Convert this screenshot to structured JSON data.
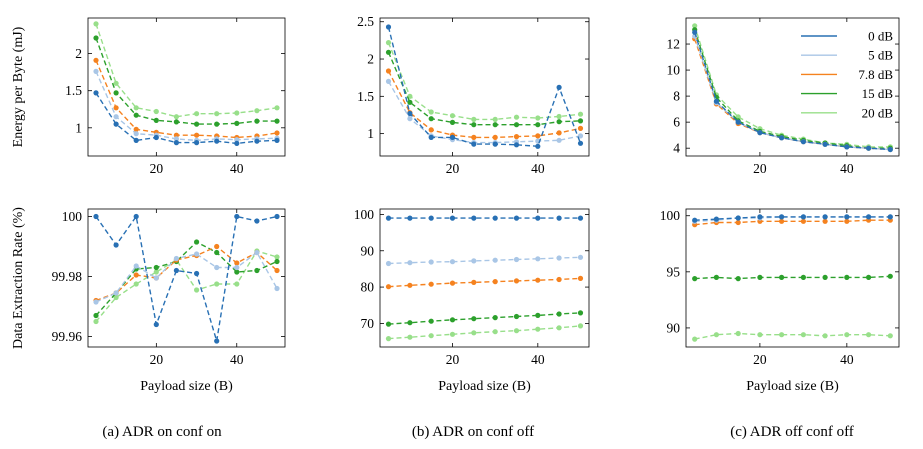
{
  "chart_data": [
    {
      "type": "line",
      "caption": "(a) ADR on conf on",
      "ylabel": "Energy per Byte (mJ)",
      "xlabel": "",
      "xlim": [
        3,
        52
      ],
      "ylim": [
        0.62,
        2.48
      ],
      "xticks": [
        20,
        40
      ],
      "yticks": [
        1,
        1.5,
        2
      ],
      "yticklabels": [
        "1",
        "1.5",
        "2"
      ],
      "x": [
        5,
        10,
        15,
        20,
        25,
        30,
        35,
        40,
        45,
        50
      ],
      "series": [
        {
          "name": "0 dB",
          "values": [
            1.47,
            1.05,
            0.83,
            0.87,
            0.8,
            0.8,
            0.82,
            0.79,
            0.82,
            0.83
          ]
        },
        {
          "name": "5 dB",
          "values": [
            1.76,
            1.15,
            0.92,
            0.9,
            0.85,
            0.83,
            0.85,
            0.84,
            0.85,
            0.86
          ]
        },
        {
          "name": "7.8 dB",
          "values": [
            1.91,
            1.27,
            0.98,
            0.94,
            0.9,
            0.9,
            0.89,
            0.87,
            0.89,
            0.93
          ]
        },
        {
          "name": "15 dB",
          "values": [
            2.21,
            1.47,
            1.17,
            1.1,
            1.08,
            1.05,
            1.05,
            1.06,
            1.09,
            1.09
          ]
        },
        {
          "name": "20 dB",
          "values": [
            2.4,
            1.6,
            1.27,
            1.22,
            1.15,
            1.19,
            1.19,
            1.2,
            1.23,
            1.27
          ]
        }
      ]
    },
    {
      "type": "line",
      "caption": "(b) ADR on conf off",
      "ylabel": "",
      "xlabel": "",
      "xlim": [
        3,
        52
      ],
      "ylim": [
        0.7,
        2.55
      ],
      "xticks": [
        20,
        40
      ],
      "yticks": [
        1,
        1.5,
        2,
        2.5
      ],
      "yticklabels": [
        "1",
        "1.5",
        "2",
        "2.5"
      ],
      "x": [
        5,
        10,
        15,
        20,
        25,
        30,
        35,
        40,
        45,
        50
      ],
      "series": [
        {
          "name": "0 dB",
          "values": [
            2.43,
            1.27,
            0.95,
            0.95,
            0.86,
            0.86,
            0.85,
            0.83,
            1.62,
            0.87
          ]
        },
        {
          "name": "5 dB",
          "values": [
            1.7,
            1.2,
            0.97,
            0.92,
            0.88,
            0.88,
            0.89,
            0.9,
            0.91,
            0.97
          ]
        },
        {
          "name": "7.8 dB",
          "values": [
            1.84,
            1.28,
            1.05,
            0.98,
            0.95,
            0.95,
            0.96,
            0.97,
            1.01,
            1.07
          ]
        },
        {
          "name": "15 dB",
          "values": [
            2.09,
            1.42,
            1.2,
            1.15,
            1.12,
            1.12,
            1.12,
            1.12,
            1.16,
            1.17
          ]
        },
        {
          "name": "20 dB",
          "values": [
            2.22,
            1.5,
            1.29,
            1.24,
            1.19,
            1.19,
            1.22,
            1.21,
            1.23,
            1.26
          ]
        }
      ]
    },
    {
      "type": "line",
      "caption": "(c) ADR off conf off",
      "ylabel": "",
      "xlabel": "",
      "xlim": [
        3,
        52
      ],
      "ylim": [
        3.4,
        14.0
      ],
      "xticks": [
        20,
        40
      ],
      "yticks": [
        4,
        6,
        8,
        10,
        12
      ],
      "yticklabels": [
        "4",
        "6",
        "8",
        "10",
        "12"
      ],
      "x": [
        5,
        10,
        15,
        20,
        25,
        30,
        35,
        40,
        45,
        50
      ],
      "series": [
        {
          "name": "0 dB",
          "values": [
            12.9,
            7.6,
            6.0,
            5.2,
            4.8,
            4.5,
            4.3,
            4.1,
            4.0,
            3.9
          ]
        },
        {
          "name": "5 dB",
          "values": [
            12.6,
            7.5,
            6.0,
            5.2,
            4.8,
            4.5,
            4.3,
            4.1,
            4.0,
            3.9
          ]
        },
        {
          "name": "7.8 dB",
          "values": [
            12.4,
            7.4,
            5.9,
            5.2,
            4.8,
            4.5,
            4.3,
            4.1,
            4.0,
            3.9
          ]
        },
        {
          "name": "15 dB",
          "values": [
            13.1,
            7.9,
            6.1,
            5.3,
            4.9,
            4.6,
            4.4,
            4.2,
            4.0,
            4.0
          ]
        },
        {
          "name": "20 dB",
          "values": [
            13.4,
            8.1,
            6.4,
            5.5,
            5.0,
            4.7,
            4.4,
            4.3,
            4.1,
            4.1
          ]
        }
      ],
      "legend": {
        "position": "top-right",
        "entries": [
          "0 dB",
          "5 dB",
          "7.8 dB",
          "15 dB",
          "20 dB"
        ]
      }
    },
    {
      "type": "line",
      "caption": "(a) ADR on conf on",
      "ylabel": "Data Extraction Rate (%)",
      "xlabel": "Payload size (B)",
      "xlim": [
        3,
        52
      ],
      "ylim": [
        99.9565,
        100.0025
      ],
      "xticks": [
        20,
        40
      ],
      "yticks": [
        99.96,
        99.98,
        100
      ],
      "yticklabels": [
        "99.96",
        "99.98",
        "100"
      ],
      "x": [
        5,
        10,
        15,
        20,
        25,
        30,
        35,
        40,
        45,
        50
      ],
      "series": [
        {
          "name": "0 dB",
          "values": [
            100.0,
            99.9905,
            100.0,
            99.964,
            99.982,
            99.981,
            99.9585,
            100.0,
            99.9985,
            100.0
          ]
        },
        {
          "name": "5 dB",
          "values": [
            99.9715,
            99.9745,
            99.9835,
            99.9795,
            99.986,
            99.9875,
            99.983,
            99.983,
            99.988,
            99.976
          ]
        },
        {
          "name": "7.8 dB",
          "values": [
            99.972,
            99.9745,
            99.9805,
            99.9795,
            99.9855,
            99.987,
            99.99,
            99.9845,
            99.988,
            99.982
          ]
        },
        {
          "name": "15 dB",
          "values": [
            99.967,
            99.9745,
            99.9825,
            99.983,
            99.985,
            99.9915,
            99.988,
            99.9815,
            99.982,
            99.985
          ]
        },
        {
          "name": "20 dB",
          "values": [
            99.965,
            99.973,
            99.9775,
            99.9815,
            99.9855,
            99.9755,
            99.9775,
            99.9775,
            99.9885,
            99.9865
          ]
        }
      ]
    },
    {
      "type": "line",
      "caption": "(b) ADR on conf off",
      "ylabel": "",
      "xlabel": "Payload size (B)",
      "xlim": [
        3,
        52
      ],
      "ylim": [
        63.5,
        101.5
      ],
      "xticks": [
        20,
        40
      ],
      "yticks": [
        70,
        80,
        90,
        100
      ],
      "yticklabels": [
        "70",
        "80",
        "90",
        "100"
      ],
      "x": [
        5,
        10,
        15,
        20,
        25,
        30,
        35,
        40,
        45,
        50
      ],
      "series": [
        {
          "name": "0 dB",
          "values": [
            99.0,
            99.0,
            99.0,
            99.0,
            99.0,
            99.0,
            99.0,
            99.0,
            99.0,
            99.0
          ]
        },
        {
          "name": "5 dB",
          "values": [
            86.5,
            86.7,
            86.9,
            87.0,
            87.2,
            87.4,
            87.6,
            87.8,
            88.0,
            88.2
          ]
        },
        {
          "name": "7.8 dB",
          "values": [
            80.1,
            80.5,
            80.8,
            81.1,
            81.3,
            81.5,
            81.7,
            81.9,
            82.1,
            82.4
          ]
        },
        {
          "name": "15 dB",
          "values": [
            69.8,
            70.2,
            70.6,
            71.0,
            71.3,
            71.6,
            71.9,
            72.2,
            72.6,
            72.9
          ]
        },
        {
          "name": "20 dB",
          "values": [
            65.8,
            66.2,
            66.6,
            67.0,
            67.4,
            67.7,
            68.0,
            68.4,
            68.8,
            69.3
          ]
        }
      ]
    },
    {
      "type": "line",
      "caption": "(c) ADR off conf off",
      "ylabel": "",
      "xlabel": "Payload size (B)",
      "xlim": [
        3,
        52
      ],
      "ylim": [
        88.3,
        100.6
      ],
      "xticks": [
        20,
        40
      ],
      "yticks": [
        90,
        95,
        100
      ],
      "yticklabels": [
        "90",
        "95",
        "100"
      ],
      "x": [
        5,
        10,
        15,
        20,
        25,
        30,
        35,
        40,
        45,
        50
      ],
      "series": [
        {
          "name": "0 dB",
          "values": [
            99.6,
            99.7,
            99.8,
            99.9,
            99.9,
            99.9,
            99.9,
            99.9,
            99.9,
            99.9
          ]
        },
        {
          "name": "5 dB",
          "values": [
            99.5,
            99.6,
            99.8,
            99.8,
            99.9,
            99.9,
            99.9,
            99.9,
            99.9,
            99.9
          ]
        },
        {
          "name": "7.8 dB",
          "values": [
            99.2,
            99.4,
            99.4,
            99.5,
            99.5,
            99.5,
            99.5,
            99.5,
            99.6,
            99.6
          ]
        },
        {
          "name": "15 dB",
          "values": [
            94.4,
            94.5,
            94.4,
            94.5,
            94.5,
            94.5,
            94.5,
            94.5,
            94.5,
            94.6
          ]
        },
        {
          "name": "20 dB",
          "values": [
            89.0,
            89.4,
            89.5,
            89.4,
            89.4,
            89.4,
            89.3,
            89.4,
            89.4,
            89.3
          ]
        }
      ]
    }
  ],
  "colors": {
    "0 dB": "#2870b4",
    "5 dB": "#a9c6e6",
    "7.8 dB": "#f5821f",
    "15 dB": "#2ca02c",
    "20 dB": "#98df8a"
  },
  "captions": [
    "(a) ADR on conf on",
    "(b) ADR on conf off",
    "(c) ADR off conf off"
  ]
}
